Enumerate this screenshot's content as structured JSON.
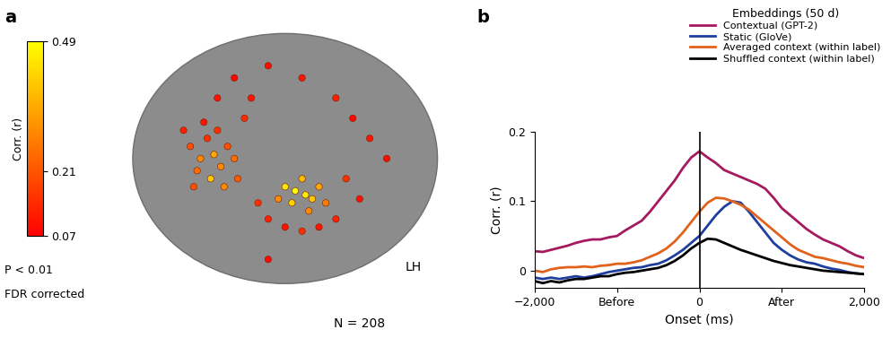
{
  "chart_data": [
    {
      "type": "scatter",
      "panel_label": "a",
      "colorbar_label": "Corr. (r)",
      "significance": [
        "P < 0.01",
        "FDR corrected"
      ],
      "hemisphere": "LH",
      "n_label": "N = 208",
      "tick_labels": false,
      "xlim": [
        0,
        100
      ],
      "ylim": [
        -10,
        70
      ],
      "x": [
        22,
        25,
        27,
        24,
        29,
        31,
        28,
        33,
        20,
        26,
        30,
        35,
        23,
        32,
        36,
        50,
        53,
        56,
        52,
        58,
        55,
        60,
        48,
        62,
        57,
        45,
        50,
        55,
        60,
        65,
        42,
        40,
        35,
        45,
        55,
        65,
        70,
        75,
        80,
        68,
        72,
        38,
        30,
        45
      ],
      "y": [
        38,
        35,
        40,
        32,
        36,
        33,
        30,
        38,
        42,
        44,
        42,
        35,
        28,
        28,
        30,
        28,
        27,
        26,
        24,
        25,
        30,
        28,
        25,
        24,
        22,
        20,
        18,
        17,
        18,
        20,
        24,
        50,
        55,
        58,
        55,
        50,
        45,
        40,
        35,
        30,
        25,
        45,
        50,
        10
      ],
      "values": [
        0.2,
        0.3,
        0.15,
        0.25,
        0.35,
        0.3,
        0.4,
        0.2,
        0.12,
        0.1,
        0.15,
        0.25,
        0.2,
        0.3,
        0.22,
        0.45,
        0.49,
        0.46,
        0.42,
        0.4,
        0.38,
        0.35,
        0.3,
        0.28,
        0.3,
        0.12,
        0.1,
        0.15,
        0.1,
        0.12,
        0.15,
        0.1,
        0.08,
        0.09,
        0.1,
        0.12,
        0.08,
        0.1,
        0.09,
        0.15,
        0.1,
        0.14,
        0.1,
        0.08
      ],
      "color_range": [
        0.07,
        0.49
      ],
      "color_ticks": [
        0.07,
        0.21,
        0.49
      ]
    },
    {
      "type": "line",
      "panel_label": "b",
      "x_label": "Onset (ms)",
      "y_label": "Corr. (r)",
      "legend_title": "Embeddings (50 d)",
      "legend": "upper right",
      "xlim": [
        -2000,
        2000
      ],
      "ylim": [
        -0.025,
        0.2
      ],
      "xticks": [
        {
          "value": -2000,
          "label": "−2,000"
        },
        {
          "value": -1000,
          "label": "Before"
        },
        0,
        {
          "value": 1000,
          "label": "After"
        },
        {
          "value": 2000,
          "label": "2,000"
        }
      ],
      "yticks": [
        0,
        0.1,
        0.2
      ],
      "vline_x": 0,
      "x": [
        -2000,
        -1900,
        -1800,
        -1700,
        -1600,
        -1500,
        -1400,
        -1300,
        -1200,
        -1100,
        -1000,
        -900,
        -800,
        -700,
        -600,
        -500,
        -400,
        -300,
        -200,
        -100,
        0,
        100,
        200,
        300,
        400,
        500,
        600,
        700,
        800,
        900,
        1000,
        1100,
        1200,
        1300,
        1400,
        1500,
        1600,
        1700,
        1800,
        1900,
        2000
      ],
      "series": [
        {
          "name": "Contextual (GPT-2)",
          "color": "#a5195f",
          "values": [
            0.028,
            0.027,
            0.03,
            0.033,
            0.036,
            0.04,
            0.043,
            0.045,
            0.045,
            0.048,
            0.05,
            0.058,
            0.065,
            0.072,
            0.085,
            0.1,
            0.115,
            0.13,
            0.148,
            0.163,
            0.172,
            0.163,
            0.155,
            0.145,
            0.14,
            0.135,
            0.13,
            0.125,
            0.118,
            0.105,
            0.09,
            0.08,
            0.07,
            0.06,
            0.052,
            0.045,
            0.04,
            0.035,
            0.028,
            0.022,
            0.018
          ]
        },
        {
          "name": "Static (GloVe)",
          "color": "#1f3f9e",
          "values": [
            -0.01,
            -0.012,
            -0.01,
            -0.012,
            -0.01,
            -0.008,
            -0.01,
            -0.008,
            -0.005,
            -0.002,
            0,
            0.002,
            0.004,
            0.005,
            0.008,
            0.01,
            0.015,
            0.022,
            0.03,
            0.04,
            0.05,
            0.065,
            0.08,
            0.092,
            0.1,
            0.098,
            0.085,
            0.07,
            0.055,
            0.04,
            0.03,
            0.022,
            0.016,
            0.012,
            0.01,
            0.006,
            0.003,
            0.001,
            -0.002,
            -0.004,
            -0.005
          ]
        },
        {
          "name": "Averaged context (within label)",
          "color": "#e0621c",
          "values": [
            0.0,
            -0.002,
            0.002,
            0.004,
            0.005,
            0.005,
            0.006,
            0.005,
            0.007,
            0.008,
            0.01,
            0.01,
            0.012,
            0.015,
            0.02,
            0.025,
            0.032,
            0.042,
            0.055,
            0.07,
            0.085,
            0.098,
            0.105,
            0.104,
            0.1,
            0.095,
            0.088,
            0.078,
            0.068,
            0.058,
            0.048,
            0.038,
            0.03,
            0.025,
            0.02,
            0.018,
            0.015,
            0.012,
            0.01,
            0.007,
            0.005
          ]
        },
        {
          "name": "Shuffled context (within label)",
          "color": "#000000",
          "values": [
            -0.015,
            -0.018,
            -0.015,
            -0.017,
            -0.014,
            -0.012,
            -0.012,
            -0.01,
            -0.008,
            -0.008,
            -0.005,
            -0.003,
            -0.002,
            0.0,
            0.002,
            0.004,
            0.008,
            0.014,
            0.022,
            0.032,
            0.04,
            0.046,
            0.045,
            0.04,
            0.035,
            0.03,
            0.026,
            0.022,
            0.018,
            0.014,
            0.011,
            0.008,
            0.006,
            0.004,
            0.002,
            0.0,
            -0.001,
            -0.002,
            -0.003,
            -0.004,
            -0.005
          ]
        }
      ]
    }
  ]
}
